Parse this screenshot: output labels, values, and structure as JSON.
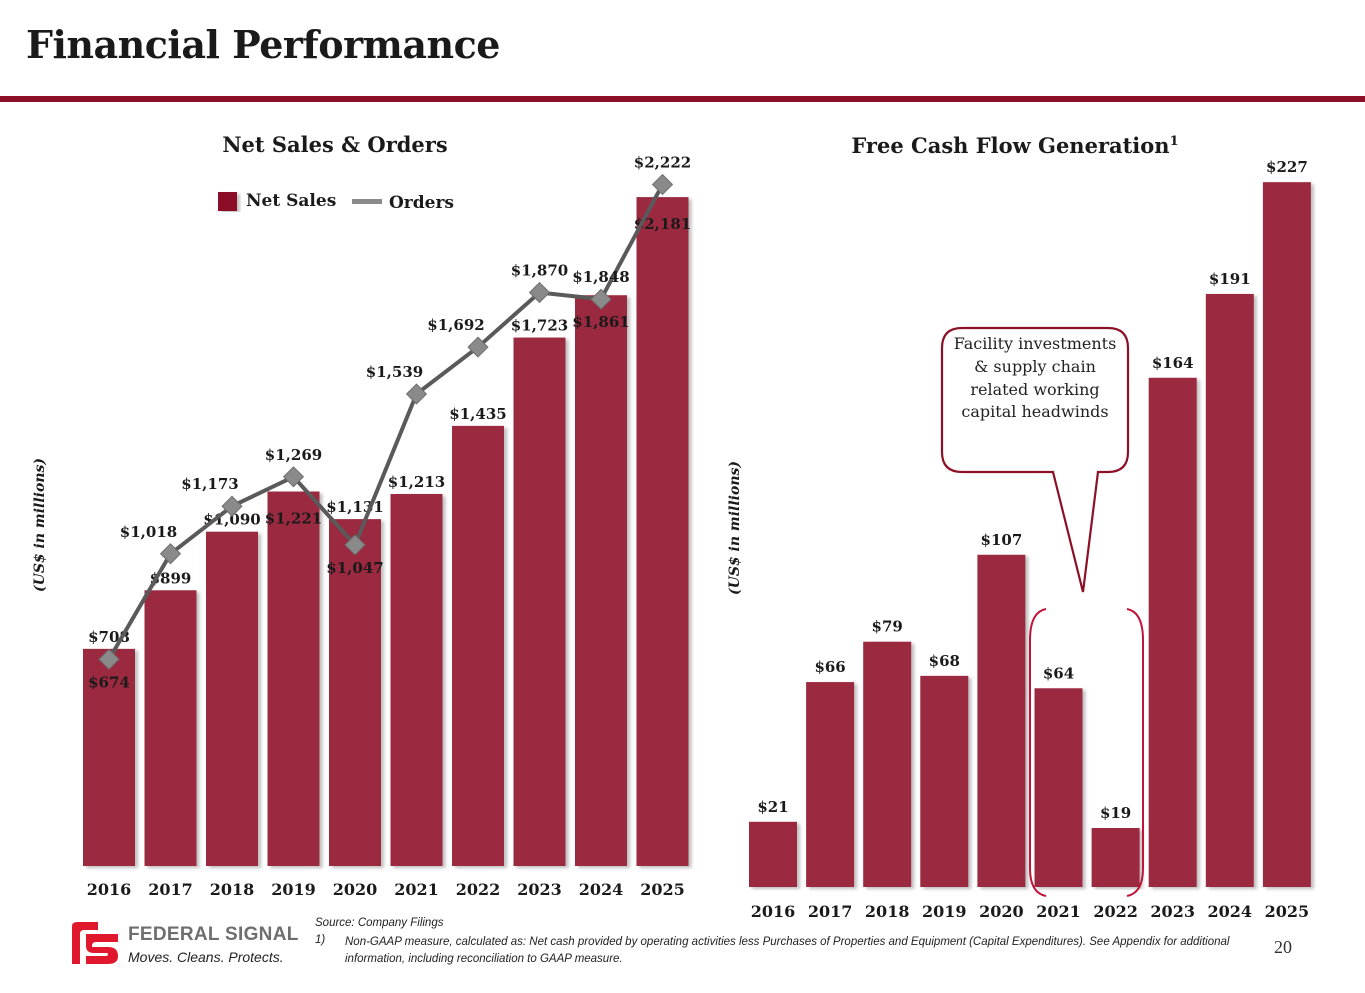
{
  "page": {
    "title": "Financial Performance",
    "page_number": "20"
  },
  "footer": {
    "source": "Source: Company Filings",
    "note_number": "1)",
    "note": "Non-GAAP measure, calculated as: Net cash provided by operating activities less Purchases of Properties and Equipment (Capital Expenditures). See Appendix for additional information, including reconciliation to GAAP measure.",
    "logo_name": "FEDERAL SIGNAL",
    "logo_tagline": "Moves. Cleans. Protects."
  },
  "colors": {
    "brand": "#8c1026",
    "bar": "#9b2a40",
    "line": "#5a5a5a",
    "marker": "#8a8a8a"
  },
  "chart_data": [
    {
      "type": "bar",
      "title": "Net Sales & Orders",
      "ylabel": "(US$ in millions)",
      "xlabel": "",
      "categories": [
        "2016",
        "2017",
        "2018",
        "2019",
        "2020",
        "2021",
        "2022",
        "2023",
        "2024",
        "2025"
      ],
      "legend": {
        "position": "top-center",
        "entries": [
          "Net Sales",
          "Orders"
        ]
      },
      "series": [
        {
          "name": "Net Sales",
          "type": "bar",
          "values": [
            708,
            899,
            1090,
            1221,
            1131,
            1213,
            1435,
            1723,
            1861,
            2181
          ],
          "labels": [
            "$708",
            "$899",
            "$1,090",
            "$1,221",
            "$1,131",
            "$1,213",
            "$1,435",
            "$1,723",
            "$1,861",
            "$2,181"
          ]
        },
        {
          "name": "Orders",
          "type": "line",
          "values": [
            674,
            1018,
            1173,
            1269,
            1047,
            1539,
            1692,
            1870,
            1848,
            2222
          ],
          "labels": [
            "$674",
            "$1,018",
            "$1,173",
            "$1,269",
            "$1,047",
            "$1,539",
            "$1,692",
            "$1,870",
            "$1,848",
            "$2,222"
          ]
        }
      ],
      "ylim": [
        0,
        2300
      ],
      "grid": false
    },
    {
      "type": "bar",
      "title": "Free Cash Flow Generation",
      "title_superscript": "1",
      "ylabel": "(US$ in millions)",
      "xlabel": "",
      "categories": [
        "2016",
        "2017",
        "2018",
        "2019",
        "2020",
        "2021",
        "2022",
        "2023",
        "2024",
        "2025"
      ],
      "series": [
        {
          "name": "Free Cash Flow",
          "values": [
            21,
            66,
            79,
            68,
            107,
            64,
            19,
            164,
            191,
            227
          ],
          "labels": [
            "$21",
            "$66",
            "$79",
            "$68",
            "$107",
            "$64",
            "$19",
            "$164",
            "$191",
            "$227"
          ]
        }
      ],
      "ylim": [
        0,
        240
      ],
      "grid": false,
      "annotation": {
        "text": "Facility investments & supply chain related working capital headwinds",
        "highlighted_categories": [
          "2021",
          "2022"
        ]
      }
    }
  ]
}
